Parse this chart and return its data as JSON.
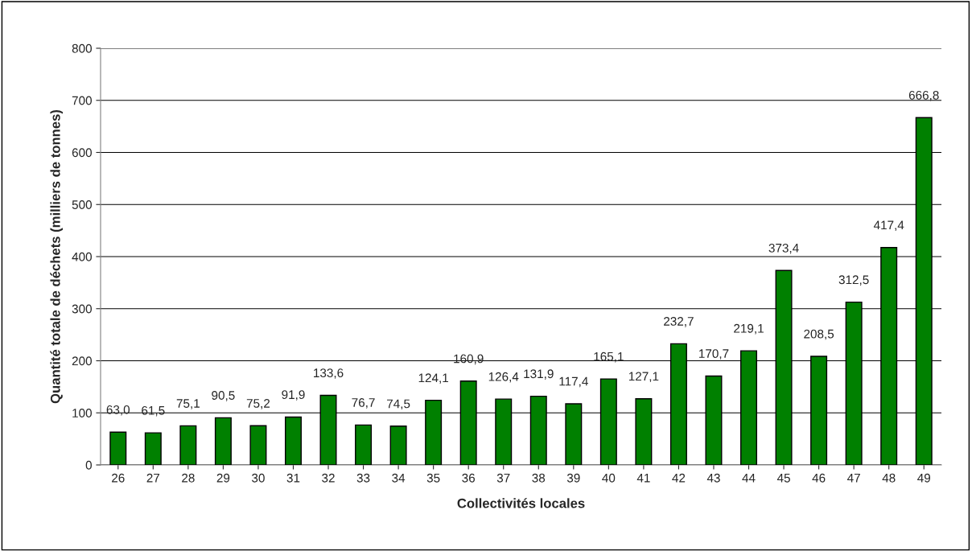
{
  "chart_data": {
    "type": "bar",
    "xlabel": "Collectivités locales",
    "ylabel": "Quantité totale de déchets (milliers de tonnes)",
    "categories": [
      "26",
      "27",
      "28",
      "29",
      "30",
      "31",
      "32",
      "33",
      "34",
      "35",
      "36",
      "37",
      "38",
      "39",
      "40",
      "41",
      "42",
      "43",
      "44",
      "45",
      "46",
      "47",
      "48",
      "49"
    ],
    "values": [
      63.0,
      61.5,
      75.1,
      90.5,
      75.2,
      91.9,
      133.6,
      76.7,
      74.5,
      124.1,
      160.9,
      126.4,
      131.9,
      117.4,
      165.1,
      127.1,
      232.7,
      170.7,
      219.1,
      373.4,
      208.5,
      312.5,
      417.4,
      666.8
    ],
    "value_labels": [
      "63,0",
      "61,5",
      "75,1",
      "90,5",
      "75,2",
      "91,9",
      "133,6",
      "76,7",
      "74,5",
      "124,1",
      "160,9",
      "126,4",
      "131,9",
      "117,4",
      "165,1",
      "127,1",
      "232,7",
      "170,7",
      "219,1",
      "373,4",
      "208,5",
      "312,5",
      "417,4",
      "666,8"
    ],
    "color": "#008000",
    "ylim": [
      0,
      800
    ],
    "yticks": [
      0,
      100,
      200,
      300,
      400,
      500,
      600,
      700,
      800
    ],
    "grid": "y",
    "legend": false
  }
}
